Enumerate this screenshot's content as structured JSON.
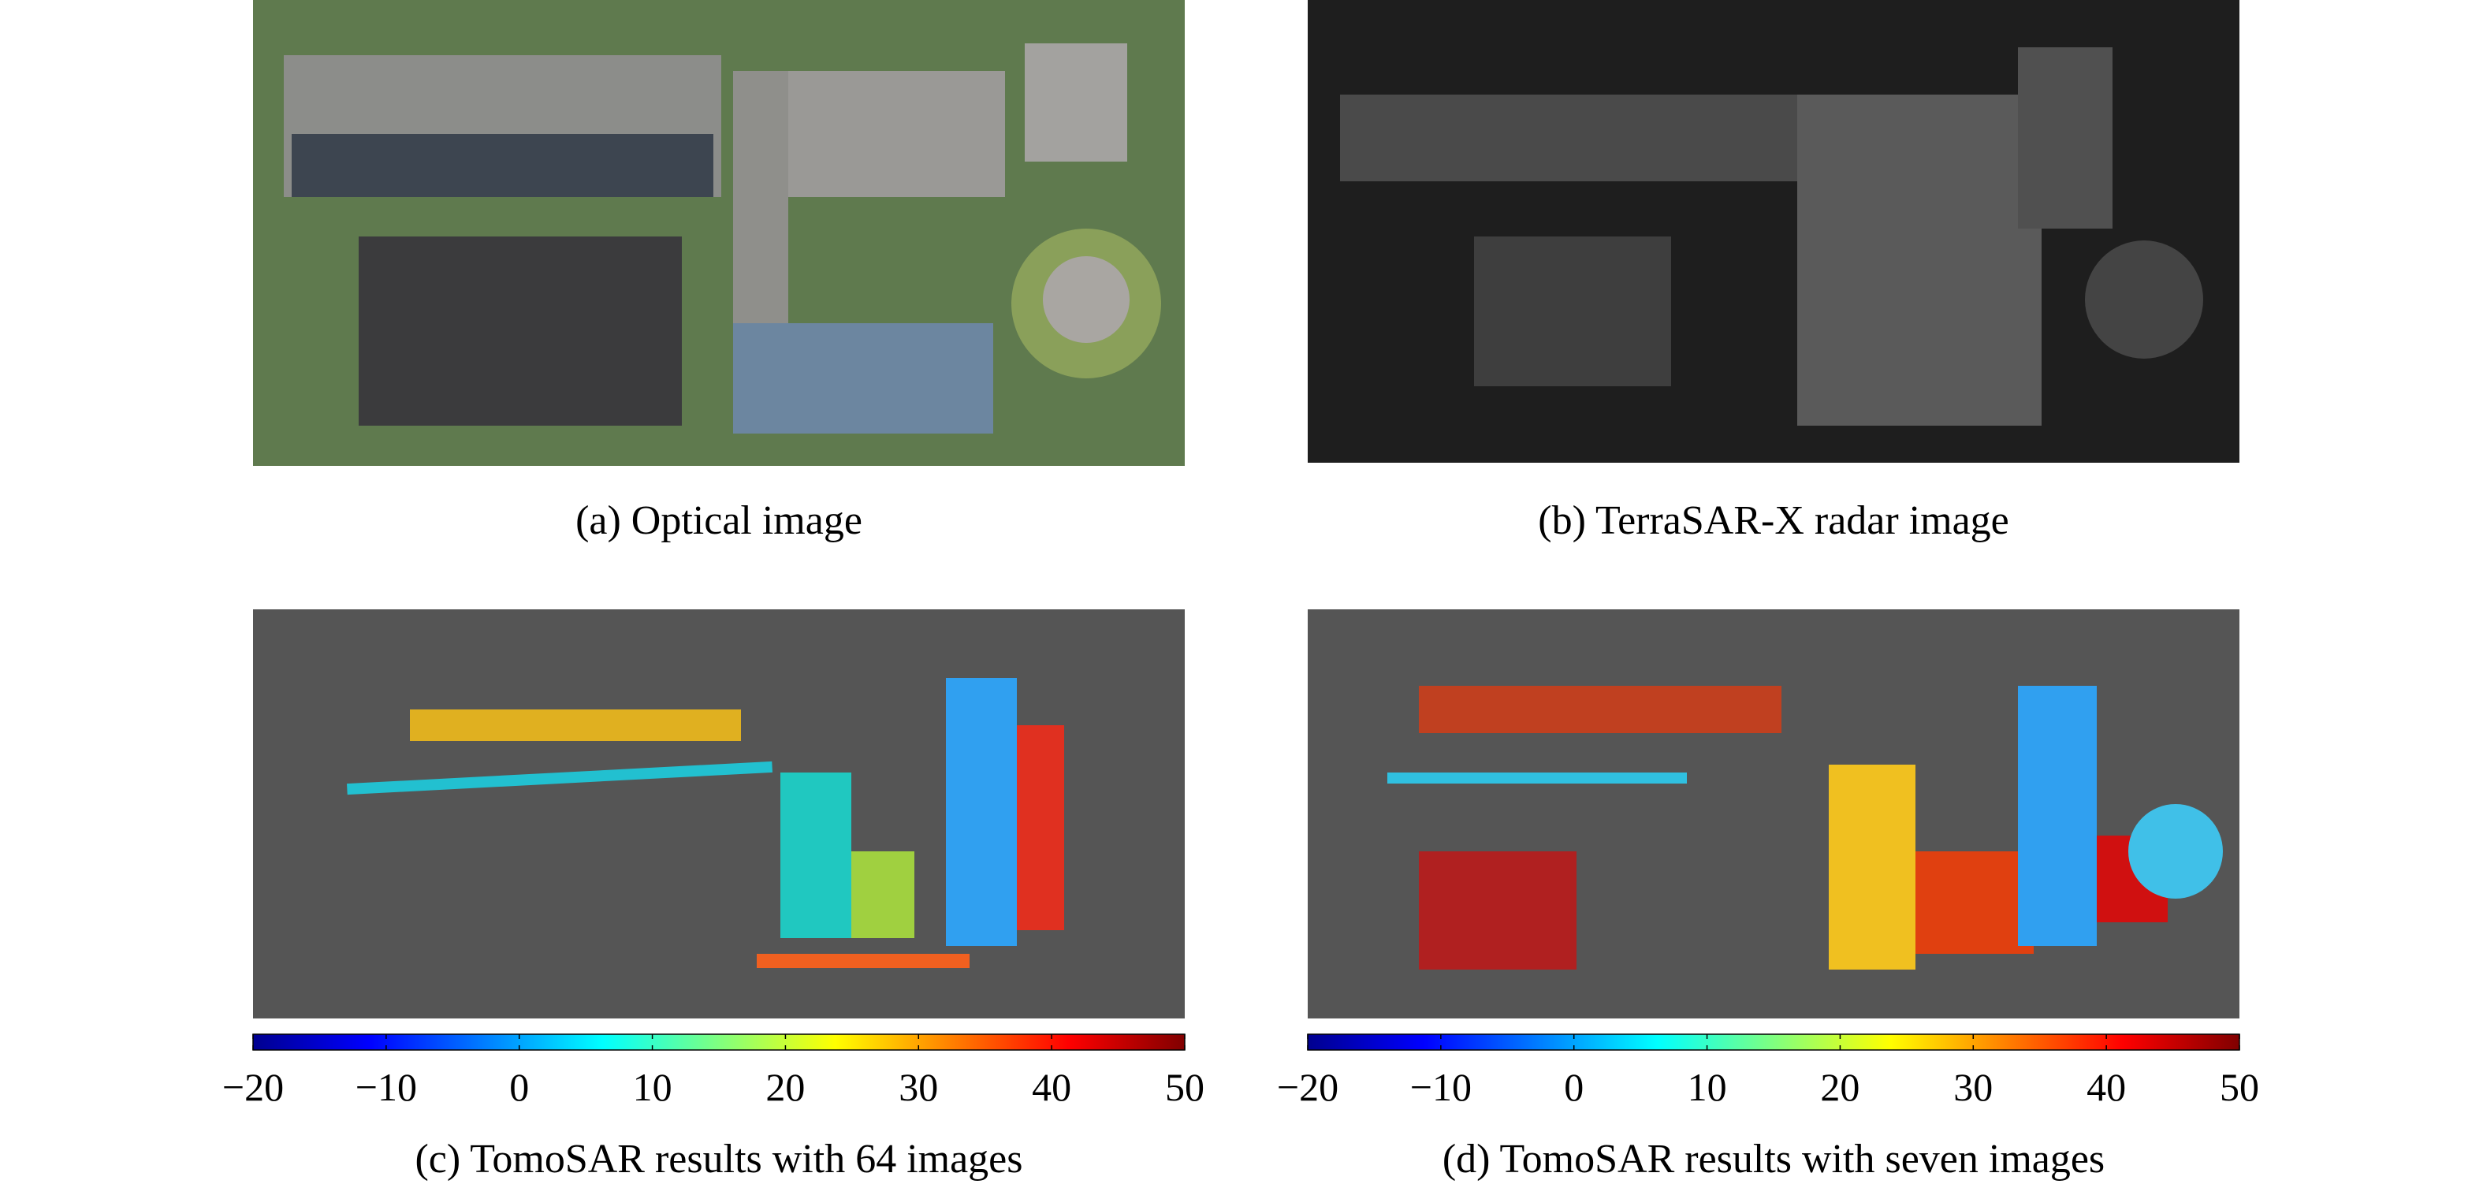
{
  "panels": [
    {
      "caption": "(a) Optical image"
    },
    {
      "caption": "(b) TerraSAR-X radar image"
    },
    {
      "caption": "(c) TomoSAR results with 64 images",
      "colorbar": {
        "lim": [
          -20,
          50
        ],
        "ticks": [
          {
            "value": -20,
            "label": "−20"
          },
          {
            "value": -10,
            "label": "−10"
          },
          0,
          10,
          20,
          30,
          40,
          50
        ]
      }
    },
    {
      "caption": "(d) TomoSAR results with seven images",
      "colorbar": {
        "lim": [
          -20,
          50
        ],
        "ticks": [
          {
            "value": -20,
            "label": "−20"
          },
          {
            "value": -10,
            "label": "−10"
          },
          0,
          10,
          20,
          30,
          40,
          50
        ]
      }
    }
  ]
}
